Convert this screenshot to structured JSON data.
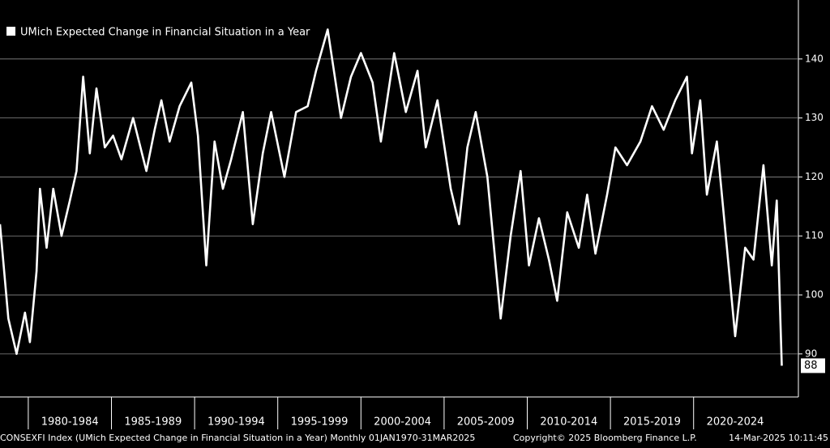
{
  "chart_data": {
    "type": "line",
    "legend_label": "UMich Expected Change in Financial Situation in a Year",
    "x": [
      1978.3,
      1978.8,
      1979.3,
      1979.8,
      1980.1,
      1980.5,
      1980.7,
      1981.1,
      1981.5,
      1982.0,
      1982.5,
      1982.9,
      1983.3,
      1983.7,
      1984.1,
      1984.6,
      1985.1,
      1985.6,
      1986.3,
      1987.1,
      1987.6,
      1988.0,
      1988.5,
      1989.1,
      1989.8,
      1990.2,
      1990.7,
      1991.2,
      1991.7,
      1992.2,
      1992.9,
      1993.5,
      1994.1,
      1994.6,
      1995.4,
      1996.1,
      1996.8,
      1997.3,
      1998.0,
      1998.8,
      1999.4,
      2000.0,
      2000.7,
      2001.2,
      2002.0,
      2002.7,
      2003.4,
      2003.9,
      2004.6,
      2005.4,
      2005.9,
      2006.4,
      2006.9,
      2007.6,
      2008.4,
      2009.0,
      2009.6,
      2010.1,
      2010.7,
      2011.3,
      2011.8,
      2012.4,
      2013.1,
      2013.6,
      2014.1,
      2014.8,
      2015.3,
      2016.0,
      2016.8,
      2017.5,
      2018.2,
      2018.9,
      2019.6,
      2019.9,
      2020.4,
      2020.8,
      2021.4,
      2022.0,
      2022.5,
      2023.1,
      2023.6,
      2024.2,
      2024.7,
      2025.0,
      2025.3
    ],
    "series": [
      {
        "name": "UMich Expected Change in Financial Situation in a Year",
        "color": "#ffffff",
        "values": [
          112,
          96,
          90,
          97,
          92,
          104,
          118,
          108,
          118,
          110,
          116,
          121,
          137,
          124,
          135,
          125,
          127,
          123,
          130,
          121,
          128,
          133,
          126,
          132,
          136,
          127,
          105,
          126,
          118,
          123,
          131,
          112,
          124,
          131,
          120,
          131,
          132,
          138,
          145,
          130,
          137,
          141,
          136,
          126,
          141,
          131,
          138,
          125,
          133,
          118,
          112,
          125,
          131,
          120,
          96,
          110,
          121,
          105,
          113,
          106,
          99,
          114,
          108,
          117,
          107,
          117,
          125,
          122,
          126,
          132,
          128,
          133,
          137,
          124,
          133,
          117,
          126,
          108,
          93,
          108,
          106,
          122,
          105,
          116,
          88
        ]
      }
    ],
    "xlim": [
      1978.3,
      2026.3
    ],
    "xticks": [
      {
        "value": 1980,
        "label": "1980-1984"
      },
      {
        "value": 1985,
        "label": "1985-1989"
      },
      {
        "value": 1990,
        "label": "1990-1994"
      },
      {
        "value": 1995,
        "label": "1995-1999"
      },
      {
        "value": 2000,
        "label": "2000-2004"
      },
      {
        "value": 2005,
        "label": "2005-2009"
      },
      {
        "value": 2010,
        "label": "2010-2014"
      },
      {
        "value": 2015,
        "label": "2015-2019"
      },
      {
        "value": 2020,
        "label": "2020-2024"
      }
    ],
    "ylim": [
      82.7,
      150
    ],
    "yticks": [
      90,
      100,
      110,
      120,
      130,
      140
    ],
    "grid": true
  },
  "footer": {
    "source": "CONSEXFI Index (UMich Expected Change in Financial Situation in a Year)  Monthly 01JAN1970-31MAR2025",
    "copyright": "Copyright© 2025 Bloomberg Finance L.P.",
    "timestamp": "14-Mar-2025 10:11:45"
  }
}
